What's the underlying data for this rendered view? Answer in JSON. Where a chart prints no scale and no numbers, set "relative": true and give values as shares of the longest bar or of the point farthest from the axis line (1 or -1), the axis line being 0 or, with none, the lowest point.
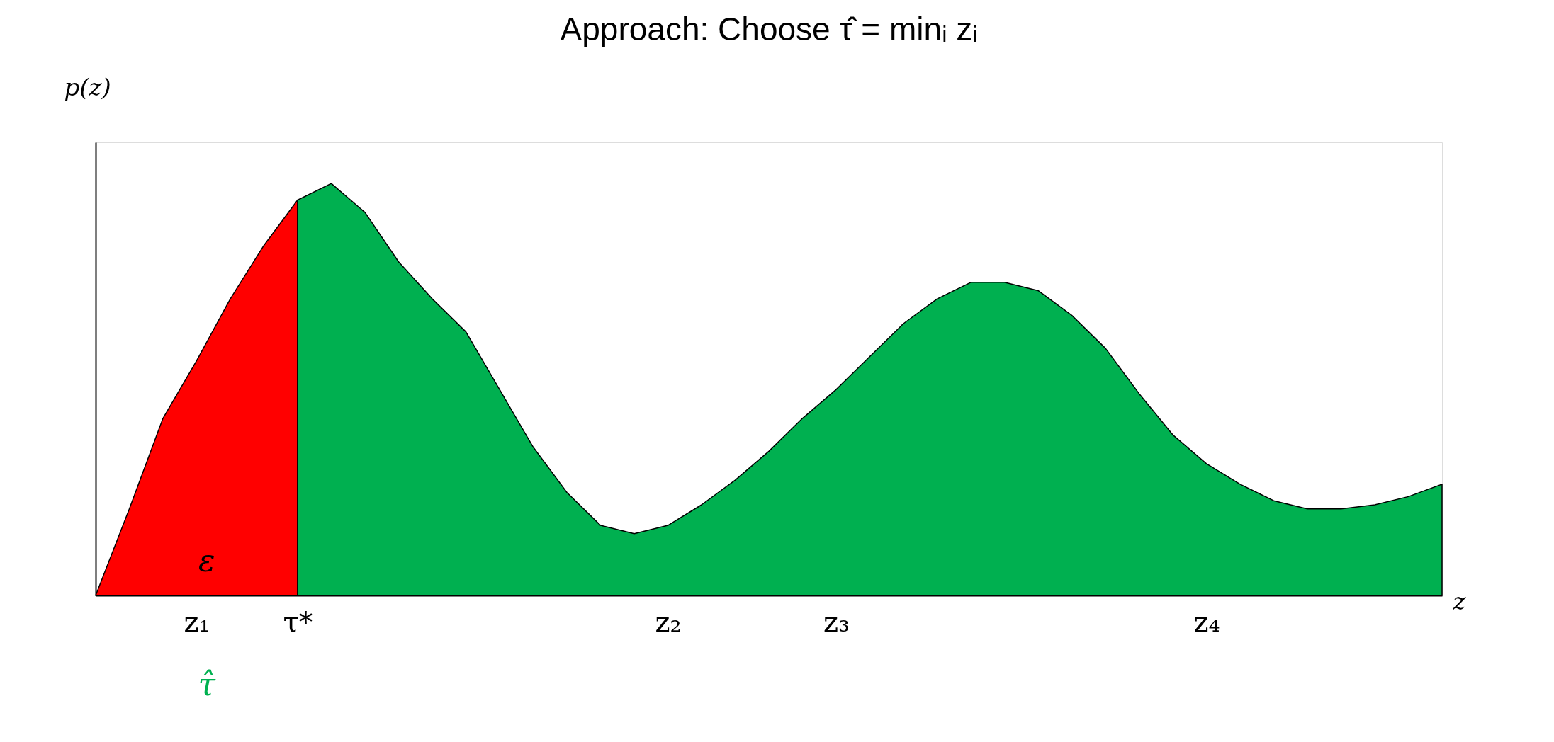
{
  "chart_data": {
    "type": "area",
    "title": "Approach: Choose τ̂ = minᵢ zᵢ",
    "xlabel": "z",
    "ylabel": "p(z)",
    "relative": true,
    "grid": false,
    "categories": [
      null,
      null,
      null,
      "z₁",
      null,
      null,
      "τ*",
      null,
      null,
      null,
      null,
      null,
      null,
      null,
      null,
      null,
      null,
      "z₂",
      null,
      null,
      null,
      null,
      "z₃",
      null,
      null,
      null,
      null,
      null,
      null,
      null,
      null,
      null,
      null,
      "z₄",
      null,
      null,
      null,
      null,
      null,
      null,
      null
    ],
    "series": [
      {
        "color": "#ff0000",
        "values": [
          0,
          0.21,
          0.43,
          0.57,
          0.72,
          0.85,
          0.96,
          null,
          null,
          null,
          null,
          null,
          null,
          null,
          null,
          null,
          null,
          null,
          null,
          null,
          null,
          null,
          null,
          null,
          null,
          null,
          null,
          null,
          null,
          null,
          null,
          null,
          null,
          null,
          null,
          null,
          null,
          null,
          null,
          null,
          null
        ]
      },
      {
        "color": "#00b050",
        "values": [
          null,
          null,
          null,
          null,
          null,
          null,
          0.96,
          1.0,
          0.93,
          0.81,
          0.72,
          0.64,
          0.5,
          0.36,
          0.25,
          0.17,
          0.15,
          0.17,
          0.22,
          0.28,
          0.35,
          0.43,
          0.5,
          0.58,
          0.66,
          0.72,
          0.76,
          0.76,
          0.74,
          0.68,
          0.6,
          0.49,
          0.39,
          0.32,
          0.27,
          0.23,
          0.21,
          0.21,
          0.22,
          0.24,
          0.27
        ]
      }
    ],
    "annotations": [
      "ε",
      "τ̂"
    ]
  }
}
